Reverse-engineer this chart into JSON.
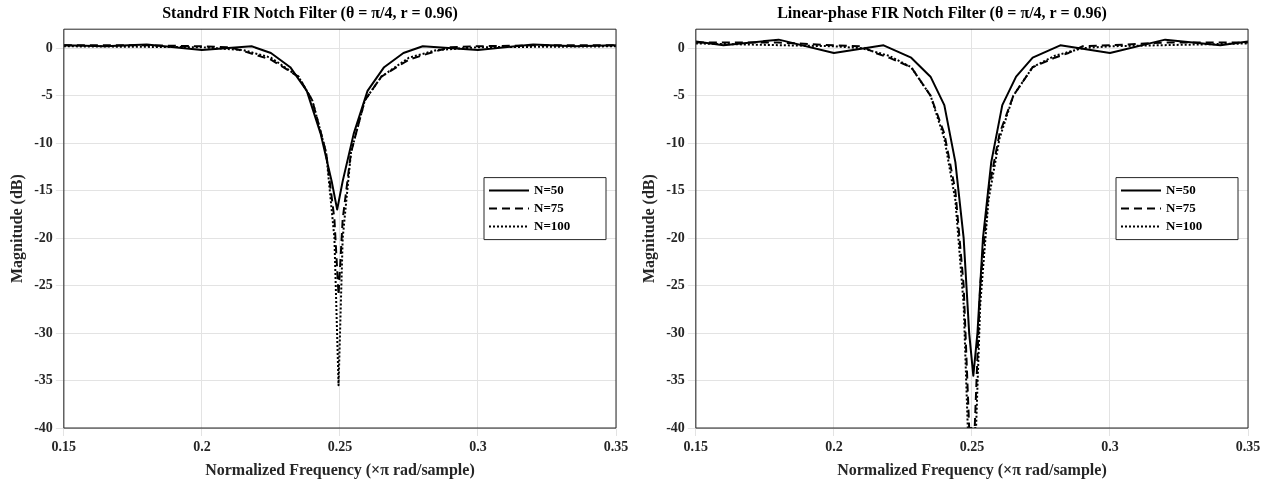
{
  "chart_data": [
    {
      "type": "line",
      "title": "Standrd FIR Notch Filter (θ = π/4, r = 0.96)",
      "xlabel": "Normalized Frequency (×π rad/sample)",
      "ylabel": "Magnitude (dB)",
      "xlim": [
        0.15,
        0.35
      ],
      "xticks": [
        0.15,
        0.2,
        0.25,
        0.3,
        0.35
      ],
      "ylim": [
        -40,
        2
      ],
      "yticks": [
        -40,
        -35,
        -30,
        -25,
        -20,
        -15,
        -10,
        -5,
        0
      ],
      "grid": true,
      "legend": "right",
      "marker": "none",
      "series": [
        {
          "name": "N=50",
          "color": "#000000",
          "line_style": "solid",
          "x": [
            0.15,
            0.165,
            0.18,
            0.2,
            0.218,
            0.225,
            0.232,
            0.238,
            0.243,
            0.247,
            0.249,
            0.251,
            0.255,
            0.26,
            0.266,
            0.273,
            0.28,
            0.3,
            0.32,
            0.335,
            0.35
          ],
          "values": [
            0.3,
            0.2,
            0.4,
            -0.2,
            0.2,
            -0.5,
            -2,
            -4.5,
            -9,
            -14,
            -17,
            -14,
            -9,
            -4.5,
            -2,
            -0.5,
            0.2,
            -0.2,
            0.4,
            0.2,
            0.3
          ]
        },
        {
          "name": "N=75",
          "color": "#000000",
          "line_style": "dashed",
          "x": [
            0.15,
            0.18,
            0.2,
            0.21,
            0.215,
            0.225,
            0.235,
            0.24,
            0.245,
            0.248,
            0.2495,
            0.251,
            0.254,
            0.259,
            0.265,
            0.275,
            0.285,
            0.29,
            0.3,
            0.32,
            0.35
          ],
          "values": [
            0.3,
            0.3,
            0.2,
            0.1,
            -0.3,
            -1.2,
            -3,
            -5.5,
            -11,
            -18,
            -26,
            -18,
            -11,
            -5.5,
            -3,
            -1.2,
            -0.3,
            0.1,
            0.2,
            0.3,
            0.3
          ]
        },
        {
          "name": "N=100",
          "color": "#000000",
          "line_style": "dotted",
          "x": [
            0.15,
            0.2,
            0.215,
            0.225,
            0.235,
            0.24,
            0.245,
            0.248,
            0.2495,
            0.251,
            0.254,
            0.259,
            0.265,
            0.275,
            0.285,
            0.3,
            0.35
          ],
          "values": [
            0.2,
            0.1,
            -0.2,
            -1,
            -3,
            -5.5,
            -11,
            -20,
            -35.5,
            -20,
            -11,
            -5.5,
            -3,
            -1,
            -0.2,
            0.1,
            0.2
          ]
        }
      ]
    },
    {
      "type": "line",
      "title": "Linear-phase FIR Notch Filter (θ = π/4, r = 0.96)",
      "xlabel": "Normalized Frequency (×π rad/sample)",
      "ylabel": "Magnitude (dB)",
      "xlim": [
        0.15,
        0.35
      ],
      "xticks": [
        0.15,
        0.2,
        0.25,
        0.3,
        0.35
      ],
      "ylim": [
        -40,
        2
      ],
      "yticks": [
        -40,
        -35,
        -30,
        -25,
        -20,
        -15,
        -10,
        -5,
        0
      ],
      "grid": true,
      "legend": "right",
      "marker": "none",
      "series": [
        {
          "name": "N=50",
          "color": "#000000",
          "line_style": "solid",
          "x": [
            0.15,
            0.16,
            0.18,
            0.2,
            0.218,
            0.228,
            0.235,
            0.24,
            0.244,
            0.247,
            0.249,
            0.2505,
            0.252,
            0.254,
            0.257,
            0.261,
            0.266,
            0.272,
            0.282,
            0.3,
            0.32,
            0.34,
            0.35
          ],
          "values": [
            0.7,
            0.3,
            0.9,
            -0.5,
            0.3,
            -1,
            -3,
            -6,
            -12,
            -20,
            -30,
            -34.5,
            -30,
            -20,
            -12,
            -6,
            -3,
            -1,
            0.3,
            -0.5,
            0.9,
            0.3,
            0.7
          ]
        },
        {
          "name": "N=75",
          "color": "#000000",
          "line_style": "dashed",
          "x": [
            0.15,
            0.18,
            0.2,
            0.21,
            0.215,
            0.22,
            0.228,
            0.235,
            0.24,
            0.244,
            0.247,
            0.249,
            0.251,
            0.253,
            0.256,
            0.26,
            0.265,
            0.272,
            0.28,
            0.285,
            0.29,
            0.3,
            0.32,
            0.35
          ],
          "values": [
            0.6,
            0.6,
            0.3,
            0.2,
            -0.5,
            -1,
            -2,
            -5,
            -9,
            -15,
            -25,
            -40,
            -40,
            -25,
            -15,
            -9,
            -5,
            -2,
            -1,
            -0.5,
            0.2,
            0.3,
            0.6,
            0.6
          ]
        },
        {
          "name": "N=100",
          "color": "#000000",
          "line_style": "dotted",
          "x": [
            0.15,
            0.2,
            0.21,
            0.22,
            0.228,
            0.235,
            0.24,
            0.244,
            0.247,
            0.2485,
            0.2515,
            0.253,
            0.256,
            0.26,
            0.265,
            0.272,
            0.28,
            0.29,
            0.3,
            0.35
          ],
          "values": [
            0.5,
            0.2,
            0,
            -0.8,
            -2,
            -5,
            -9.5,
            -16,
            -27,
            -40,
            -40,
            -27,
            -16,
            -9.5,
            -5,
            -2,
            -0.8,
            0,
            0.2,
            0.5
          ]
        }
      ]
    }
  ]
}
